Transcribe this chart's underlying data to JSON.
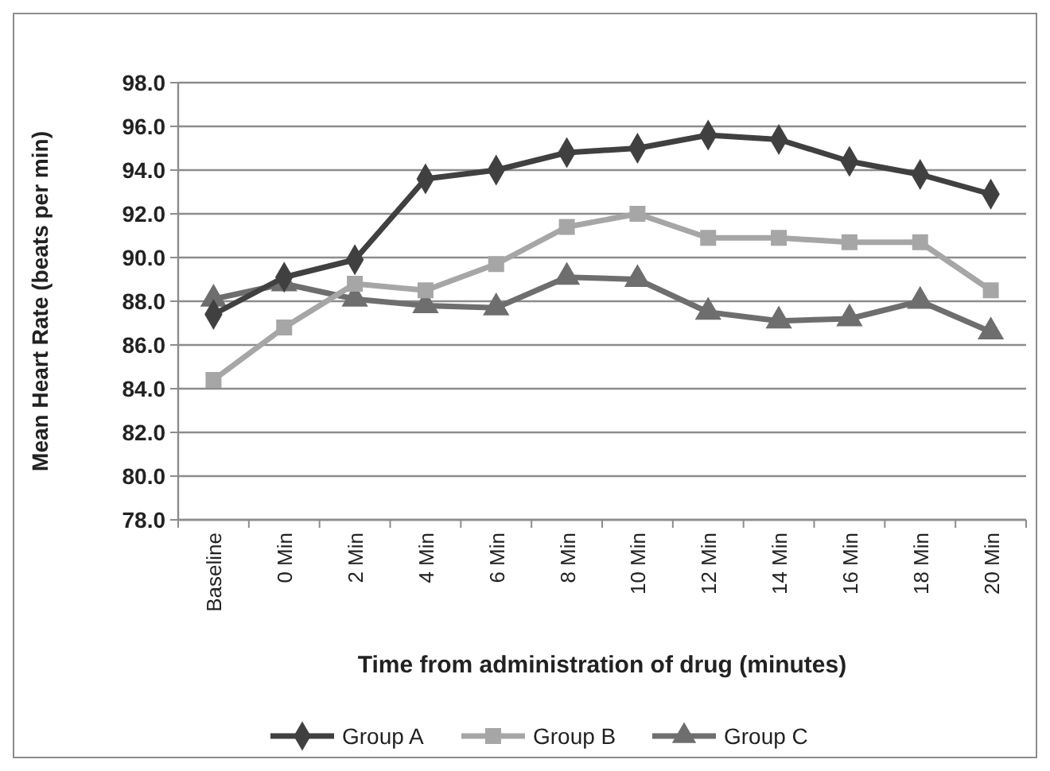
{
  "chart_data": {
    "type": "line",
    "xlabel": "Time from administration of drug (minutes)",
    "ylabel": "Mean Heart Rate (beats per min)",
    "categories": [
      "Baseline",
      "0 Min",
      "2 Min",
      "4 Min",
      "6 Min",
      "8 Min",
      "10 Min",
      "12 Min",
      "14 Min",
      "16 Min",
      "18 Min",
      "20 Min"
    ],
    "series": [
      {
        "name": "Group A",
        "color": "#404040",
        "marker": "diamond",
        "values": [
          87.4,
          89.1,
          89.9,
          93.6,
          94.0,
          94.8,
          95.0,
          95.6,
          95.4,
          94.4,
          93.8,
          92.9
        ]
      },
      {
        "name": "Group B",
        "color": "#a6a6a6",
        "marker": "square",
        "values": [
          84.4,
          86.8,
          88.8,
          88.5,
          89.7,
          91.4,
          92.0,
          90.9,
          90.9,
          90.7,
          90.7,
          88.5
        ]
      },
      {
        "name": "Group C",
        "color": "#6e6e6e",
        "marker": "triangle",
        "values": [
          88.1,
          88.8,
          88.1,
          87.8,
          87.7,
          89.1,
          89.0,
          87.5,
          87.1,
          87.2,
          88.0,
          86.6
        ]
      }
    ],
    "ylim": [
      78,
      98
    ],
    "yticks": [
      {
        "value": 78,
        "label": "78.0"
      },
      {
        "value": 80,
        "label": "80.0"
      },
      {
        "value": 82,
        "label": "82.0"
      },
      {
        "value": 84,
        "label": "84.0"
      },
      {
        "value": 86,
        "label": "86.0"
      },
      {
        "value": 88,
        "label": "88.0"
      },
      {
        "value": 90,
        "label": "90.0"
      },
      {
        "value": 92,
        "label": "92.0"
      },
      {
        "value": 94,
        "label": "94.0"
      },
      {
        "value": 96,
        "label": "96.0"
      },
      {
        "value": 98,
        "label": "98.0"
      }
    ],
    "grid": "y",
    "legend": "bottom",
    "line_style": "solid"
  }
}
